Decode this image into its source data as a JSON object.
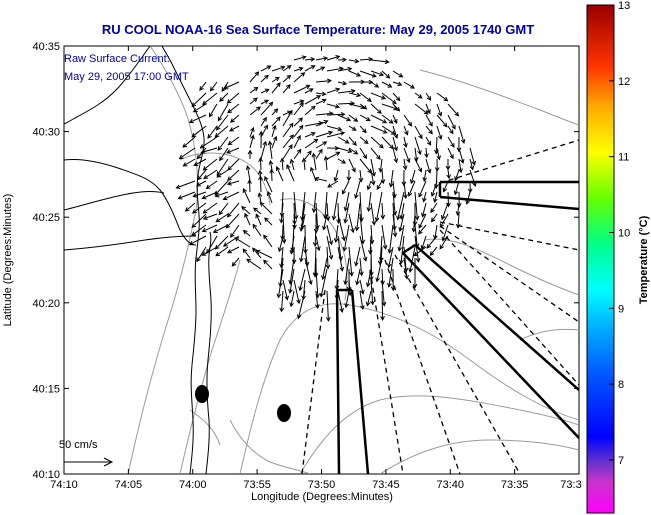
{
  "title": "RU COOL  NOAA-16  Sea Surface Temperature:  May 29, 2005 1740 GMT",
  "annotation": {
    "line1": "Raw Surface Current:",
    "line2": "May 29, 2005 17:00 GMT"
  },
  "scale_label": "50 cm/s",
  "chart_data": {
    "type": "map",
    "xlabel": "Longitude (Degrees:Minutes)",
    "ylabel": "Latitude (Degrees:Minutes)",
    "x_ticks": [
      "74:10",
      "74:05",
      "74:00",
      "73:55",
      "73:50",
      "73:45",
      "73:40",
      "73:35",
      "73:3"
    ],
    "y_ticks": [
      "40:35",
      "40:30",
      "40:25",
      "40:20",
      "40:15",
      "40:10"
    ],
    "xlim": [
      "74:10",
      "73:30"
    ],
    "ylim": [
      "40:10",
      "40:35"
    ],
    "colorbar": {
      "label": "Temperature (°C)",
      "ticks": [
        "13",
        "12",
        "11",
        "10",
        "9",
        "8",
        "7"
      ],
      "min": 6.3,
      "max": 13,
      "colormap": "jet"
    },
    "sst_field": "no data (white)",
    "vector_scale_cm_s": 50,
    "layers": [
      "coastline",
      "bathymetry contours (grey)",
      "surface current vectors",
      "radar beam lines (solid and dashed)",
      "two black markers"
    ]
  }
}
